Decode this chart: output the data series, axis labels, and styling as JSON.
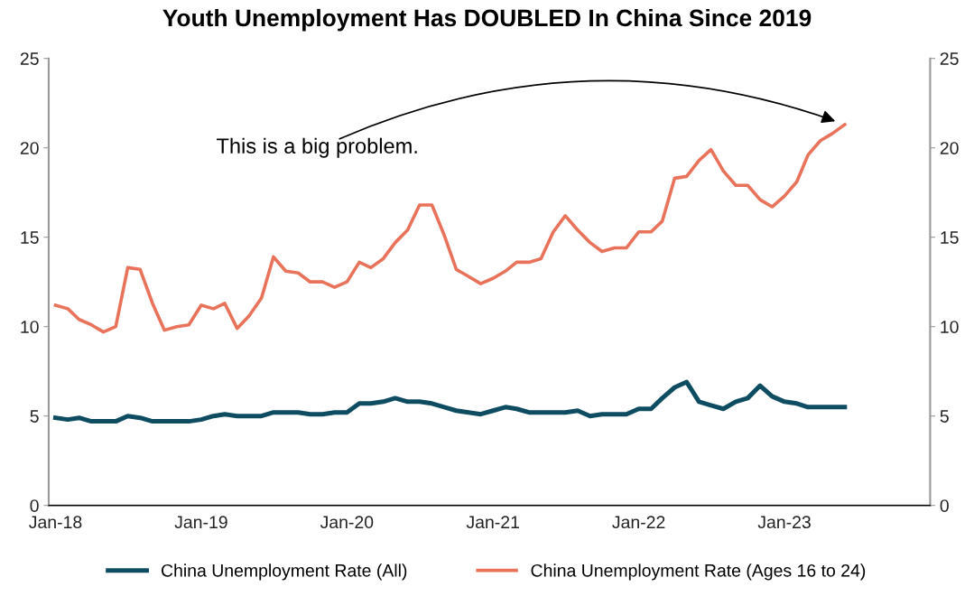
{
  "chart_data": {
    "type": "line",
    "title": "Youth Unemployment Has DOUBLED In China Since 2019",
    "x": [
      "2018-01",
      "2018-02",
      "2018-03",
      "2018-04",
      "2018-05",
      "2018-06",
      "2018-07",
      "2018-08",
      "2018-09",
      "2018-10",
      "2018-11",
      "2018-12",
      "2019-01",
      "2019-02",
      "2019-03",
      "2019-04",
      "2019-05",
      "2019-06",
      "2019-07",
      "2019-08",
      "2019-09",
      "2019-10",
      "2019-11",
      "2019-12",
      "2020-01",
      "2020-02",
      "2020-03",
      "2020-04",
      "2020-05",
      "2020-06",
      "2020-07",
      "2020-08",
      "2020-09",
      "2020-10",
      "2020-11",
      "2020-12",
      "2021-01",
      "2021-02",
      "2021-03",
      "2021-04",
      "2021-05",
      "2021-06",
      "2021-07",
      "2021-08",
      "2021-09",
      "2021-10",
      "2021-11",
      "2021-12",
      "2022-01",
      "2022-02",
      "2022-03",
      "2022-04",
      "2022-05",
      "2022-06",
      "2022-07",
      "2022-08",
      "2022-09",
      "2022-10",
      "2022-11",
      "2022-12",
      "2023-01",
      "2023-02",
      "2023-03",
      "2023-04",
      "2023-05",
      "2023-06"
    ],
    "series": [
      {
        "name": "China Unemployment Rate (All)",
        "color": "#0e4d61",
        "values": [
          4.9,
          4.8,
          4.9,
          4.7,
          4.7,
          4.7,
          5.0,
          4.9,
          4.7,
          4.7,
          4.7,
          4.7,
          4.8,
          5.0,
          5.1,
          5.0,
          5.0,
          5.0,
          5.2,
          5.2,
          5.2,
          5.1,
          5.1,
          5.2,
          5.2,
          5.7,
          5.7,
          5.8,
          6.0,
          5.8,
          5.8,
          5.7,
          5.5,
          5.3,
          5.2,
          5.1,
          5.3,
          5.5,
          5.4,
          5.2,
          5.2,
          5.2,
          5.2,
          5.3,
          5.0,
          5.1,
          5.1,
          5.1,
          5.4,
          5.4,
          6.0,
          6.6,
          6.9,
          5.8,
          5.6,
          5.4,
          5.8,
          6.0,
          6.7,
          6.1,
          5.8,
          5.7,
          5.5,
          5.5,
          5.5,
          5.5
        ]
      },
      {
        "name": "China Unemployment Rate (Ages 16 to 24)",
        "color": "#e8735a",
        "values": [
          11.2,
          11.0,
          10.4,
          10.1,
          9.7,
          10.0,
          13.3,
          13.2,
          11.3,
          9.8,
          10.0,
          10.1,
          11.2,
          11.0,
          11.3,
          9.9,
          10.6,
          11.6,
          13.9,
          13.1,
          13.0,
          12.5,
          12.5,
          12.2,
          12.5,
          13.6,
          13.3,
          13.8,
          14.7,
          15.4,
          16.8,
          16.8,
          15.1,
          13.2,
          12.8,
          12.4,
          12.7,
          13.1,
          13.6,
          13.6,
          13.8,
          15.3,
          16.2,
          15.4,
          14.7,
          14.2,
          14.4,
          14.4,
          15.3,
          15.3,
          15.9,
          18.3,
          18.4,
          19.3,
          19.9,
          18.7,
          17.9,
          17.9,
          17.1,
          16.7,
          17.3,
          18.1,
          19.6,
          20.4,
          20.8,
          21.3
        ]
      }
    ],
    "xlim": [
      "2017-12-15",
      "2024-01-01"
    ],
    "xticks": [
      {
        "value": "2018-01",
        "label": "Jan-18"
      },
      {
        "value": "2019-01",
        "label": "Jan-19"
      },
      {
        "value": "2020-01",
        "label": "Jan-20"
      },
      {
        "value": "2021-01",
        "label": "Jan-21"
      },
      {
        "value": "2022-01",
        "label": "Jan-22"
      },
      {
        "value": "2023-01",
        "label": "Jan-23"
      }
    ],
    "ylim": [
      0,
      25
    ],
    "yticks": [
      0,
      5,
      10,
      15,
      20,
      25
    ],
    "y2lim": [
      0,
      25
    ],
    "y2ticks": [
      0,
      5,
      10,
      15,
      20,
      25
    ],
    "annotations": [
      "This is a big problem."
    ],
    "grid": false,
    "legend": "bottom",
    "marker": "none",
    "line_style": "solid"
  }
}
